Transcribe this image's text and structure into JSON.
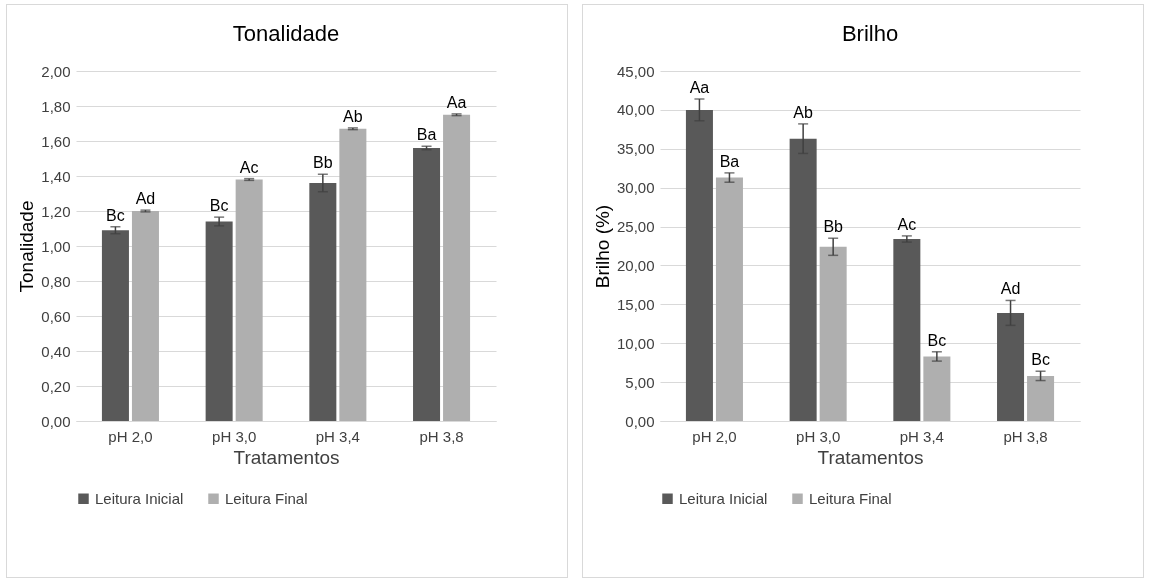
{
  "chart_data": [
    {
      "type": "bar",
      "title": "Tonalidade",
      "xlabel": "Tratamentos",
      "ylabel": "Tonalidade",
      "categories": [
        "pH 2,0",
        "pH 3,0",
        "pH 3,4",
        "pH 3,8"
      ],
      "series": [
        {
          "name": "Leitura Inicial",
          "color": "#595959",
          "values": [
            1.09,
            1.14,
            1.36,
            1.56
          ],
          "errors": [
            0.02,
            0.025,
            0.05,
            0.01
          ]
        },
        {
          "name": "Leitura Final",
          "color": "#afafaf",
          "values": [
            1.2,
            1.38,
            1.67,
            1.75
          ],
          "errors": [
            0.005,
            0.005,
            0.005,
            0.005
          ]
        }
      ],
      "ylim": [
        0,
        2
      ],
      "yticks": [
        {
          "value": 0,
          "label": "0,00"
        },
        {
          "value": 0.2,
          "label": "0,20"
        },
        {
          "value": 0.4,
          "label": "0,40"
        },
        {
          "value": 0.6,
          "label": "0,60"
        },
        {
          "value": 0.8,
          "label": "0,80"
        },
        {
          "value": 1,
          "label": "1,00"
        },
        {
          "value": 1.2,
          "label": "1,20"
        },
        {
          "value": 1.4,
          "label": "1,40"
        },
        {
          "value": 1.6,
          "label": "1,60"
        },
        {
          "value": 1.8,
          "label": "1,80"
        },
        {
          "value": 2,
          "label": "2,00"
        }
      ],
      "grid": "y",
      "legend": "bottom",
      "annotations": [
        {
          "text": "Bc",
          "x": "pH 2,0",
          "y": 1.09
        },
        {
          "text": "Ad",
          "x": "pH 2,0",
          "y": 1.2
        },
        {
          "text": "Bc",
          "x": "pH 3,0",
          "y": 1.14
        },
        {
          "text": "Ac",
          "x": "pH 3,0",
          "y": 1.38
        },
        {
          "text": "Bb",
          "x": "pH 3,4",
          "y": 1.36
        },
        {
          "text": "Ab",
          "x": "pH 3,4",
          "y": 1.67
        },
        {
          "text": "Ba",
          "x": "pH 3,8",
          "y": 1.56
        },
        {
          "text": "Aa",
          "x": "pH 3,8",
          "y": 1.75
        }
      ]
    },
    {
      "type": "bar",
      "title": "Brilho",
      "xlabel": "Tratamentos",
      "ylabel": "Brilho (%)",
      "categories": [
        "pH 2,0",
        "pH 3,0",
        "pH 3,4",
        "pH 3,8"
      ],
      "series": [
        {
          "name": "Leitura Inicial",
          "color": "#595959",
          "values": [
            40.0,
            36.3,
            23.4,
            13.9
          ],
          "errors": [
            1.4,
            1.9,
            0.4,
            1.6
          ]
        },
        {
          "name": "Leitura Final",
          "color": "#afafaf",
          "values": [
            31.3,
            22.4,
            8.3,
            5.8
          ],
          "errors": [
            0.6,
            1.1,
            0.6,
            0.6
          ]
        }
      ],
      "ylim": [
        0,
        45
      ],
      "yticks": [
        {
          "value": 0,
          "label": "0,00"
        },
        {
          "value": 5,
          "label": "5,00"
        },
        {
          "value": 10,
          "label": "10,00"
        },
        {
          "value": 15,
          "label": "15,00"
        },
        {
          "value": 20,
          "label": "20,00"
        },
        {
          "value": 25,
          "label": "25,00"
        },
        {
          "value": 30,
          "label": "30,00"
        },
        {
          "value": 35,
          "label": "35,00"
        },
        {
          "value": 40,
          "label": "40,00"
        },
        {
          "value": 45,
          "label": "45,00"
        }
      ],
      "grid": "y",
      "legend": "bottom",
      "annotations": [
        {
          "text": "Aa",
          "x": "pH 2,0",
          "y": 40.0
        },
        {
          "text": "Ba",
          "x": "pH 2,0",
          "y": 31.3
        },
        {
          "text": "Ab",
          "x": "pH 3,0",
          "y": 36.3
        },
        {
          "text": "Bb",
          "x": "pH 3,0",
          "y": 22.4
        },
        {
          "text": "Ac",
          "x": "pH 3,4",
          "y": 23.4
        },
        {
          "text": "Bc",
          "x": "pH 3,4",
          "y": 8.3
        },
        {
          "text": "Ad",
          "x": "pH 3,8",
          "y": 13.9
        },
        {
          "text": "Bc",
          "x": "pH 3,8",
          "y": 5.8
        }
      ]
    }
  ]
}
